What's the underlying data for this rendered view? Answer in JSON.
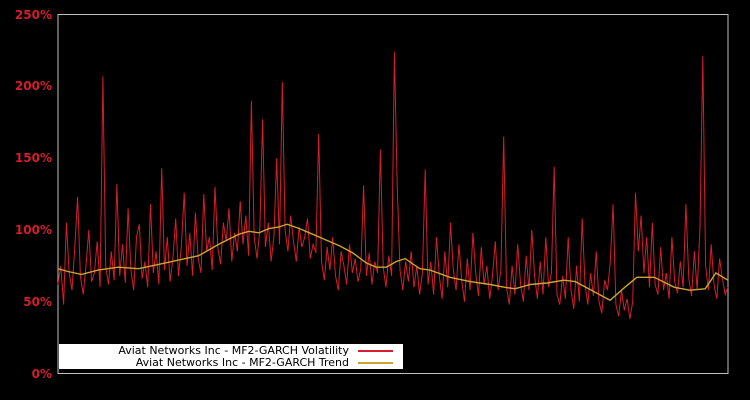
{
  "window": {
    "background": "#000000"
  },
  "chart_data": {
    "type": "line",
    "title": "",
    "xlabel": "",
    "ylabel": "",
    "ylim": [
      0,
      250
    ],
    "y_tick_values": [
      0,
      50,
      100,
      150,
      200,
      250
    ],
    "y_tick_labels": [
      "0%",
      "50%",
      "100%",
      "150%",
      "200%",
      "250%"
    ],
    "x_ticks_visible": false,
    "grid": false,
    "plot_background": "#000000",
    "axis_border_color": "#bfbfbf",
    "tick_label_color": "#d41e2c",
    "legend": {
      "position": "lower-left",
      "background": "#ffffff",
      "text_color": "#000000"
    },
    "series": [
      {
        "name": "Aviat Networks Inc - MF2-GARCH Volatility",
        "color": "#d41e2c",
        "style": "solid",
        "unit": "percent",
        "x_range": [
          0,
          1
        ],
        "values": [
          62,
          75,
          48,
          105,
          70,
          58,
          88,
          123,
          68,
          55,
          75,
          100,
          64,
          70,
          92,
          60,
          207,
          75,
          62,
          85,
          65,
          132,
          68,
          90,
          63,
          115,
          72,
          58,
          95,
          104,
          66,
          78,
          60,
          118,
          70,
          85,
          62,
          143,
          72,
          95,
          64,
          80,
          108,
          68,
          88,
          126,
          75,
          98,
          68,
          112,
          80,
          70,
          125,
          85,
          95,
          72,
          130,
          88,
          76,
          105,
          92,
          115,
          78,
          98,
          85,
          120,
          90,
          110,
          82,
          190,
          95,
          80,
          100,
          177,
          88,
          105,
          78,
          95,
          150,
          90,
          203,
          100,
          85,
          110,
          92,
          78,
          102,
          88,
          95,
          108,
          80,
          90,
          84,
          167,
          78,
          65,
          88,
          72,
          95,
          68,
          58,
          85,
          75,
          62,
          90,
          70,
          80,
          64,
          73,
          131,
          68,
          84,
          62,
          78,
          70,
          156,
          74,
          60,
          82,
          68,
          224,
          131,
          72,
          58,
          78,
          64,
          85,
          60,
          75,
          55,
          70,
          142,
          62,
          78,
          55,
          95,
          68,
          52,
          85,
          60,
          105,
          72,
          58,
          90,
          65,
          50,
          80,
          58,
          98,
          70,
          54,
          88,
          62,
          75,
          52,
          68,
          92,
          58,
          72,
          165,
          60,
          48,
          75,
          55,
          90,
          62,
          50,
          82,
          58,
          100,
          68,
          52,
          78,
          55,
          95,
          60,
          70,
          144,
          55,
          48,
          68,
          52,
          95,
          58,
          45,
          75,
          50,
          108,
          62,
          48,
          70,
          54,
          85,
          50,
          42,
          65,
          58,
          78,
          118,
          48,
          40,
          58,
          44,
          52,
          38,
          50,
          126,
          85,
          110,
          70,
          95,
          60,
          105,
          62,
          55,
          88,
          58,
          70,
          52,
          95,
          64,
          56,
          78,
          60,
          118,
          66,
          54,
          85,
          58,
          102,
          221,
          75,
          58,
          90,
          62,
          52,
          80,
          66,
          55,
          60
        ]
      },
      {
        "name": "Aviat Networks Inc - MF2-GARCH Trend",
        "color": "#cda434",
        "style": "solid",
        "unit": "percent",
        "points": [
          [
            0.0,
            73
          ],
          [
            0.015,
            71
          ],
          [
            0.035,
            69
          ],
          [
            0.06,
            72
          ],
          [
            0.09,
            74
          ],
          [
            0.12,
            73
          ],
          [
            0.15,
            76
          ],
          [
            0.18,
            79
          ],
          [
            0.21,
            82
          ],
          [
            0.24,
            90
          ],
          [
            0.257,
            94
          ],
          [
            0.27,
            97
          ],
          [
            0.285,
            99
          ],
          [
            0.3,
            98
          ],
          [
            0.315,
            101
          ],
          [
            0.33,
            102
          ],
          [
            0.342,
            104
          ],
          [
            0.36,
            101
          ],
          [
            0.38,
            97
          ],
          [
            0.4,
            93
          ],
          [
            0.42,
            89
          ],
          [
            0.44,
            84
          ],
          [
            0.46,
            77
          ],
          [
            0.475,
            74
          ],
          [
            0.49,
            74
          ],
          [
            0.505,
            78
          ],
          [
            0.518,
            80
          ],
          [
            0.54,
            73
          ],
          [
            0.555,
            72
          ],
          [
            0.585,
            67
          ],
          [
            0.615,
            64
          ],
          [
            0.645,
            62
          ],
          [
            0.667,
            60
          ],
          [
            0.682,
            59
          ],
          [
            0.705,
            62
          ],
          [
            0.73,
            63
          ],
          [
            0.755,
            65
          ],
          [
            0.772,
            64
          ],
          [
            0.8,
            57
          ],
          [
            0.824,
            51
          ],
          [
            0.846,
            60
          ],
          [
            0.864,
            67
          ],
          [
            0.89,
            67
          ],
          [
            0.92,
            60
          ],
          [
            0.943,
            58
          ],
          [
            0.966,
            59
          ],
          [
            0.982,
            70
          ],
          [
            1.0,
            65
          ]
        ]
      }
    ]
  }
}
